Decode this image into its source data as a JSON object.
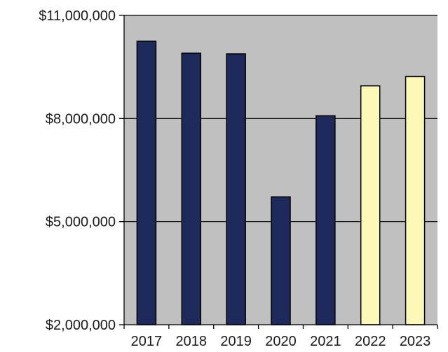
{
  "chart_data": {
    "type": "bar",
    "categories": [
      "2017",
      "2018",
      "2019",
      "2020",
      "2021",
      "2022",
      "2023"
    ],
    "values": [
      10250000,
      9900000,
      9880000,
      5720000,
      8080000,
      8950000,
      9220000
    ],
    "ylim": [
      2000000,
      11000000
    ],
    "yticks": [
      2000000,
      5000000,
      8000000,
      11000000
    ],
    "ytick_labels": [
      "$2,000,000",
      "$5,000,000",
      "$8,000,000",
      "$11,000,000"
    ],
    "grid": true,
    "colors": {
      "plot_background": "#c0c0c0",
      "actual_bar": "#1f2a5c",
      "projected_bar": "#fbf8b8",
      "bar_edge": "#000000",
      "grid": "#000000"
    },
    "bar_color_keys": [
      "actual_bar",
      "actual_bar",
      "actual_bar",
      "actual_bar",
      "actual_bar",
      "projected_bar",
      "projected_bar"
    ]
  }
}
